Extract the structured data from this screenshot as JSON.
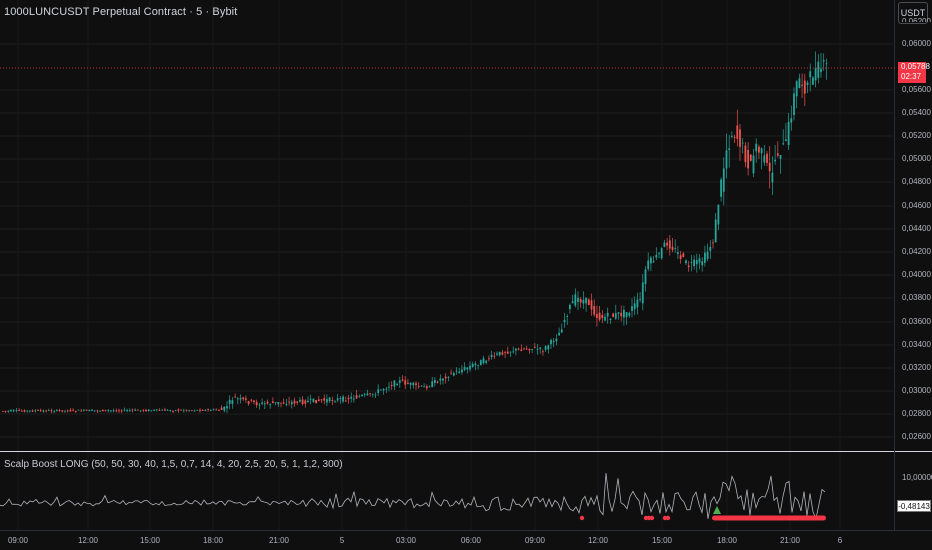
{
  "header": {
    "title": "1000LUNCUSDT Perpetual Contract · 5 · Bybit",
    "currency_button": "USDT"
  },
  "price_axis": {
    "labels": [
      "0,06000",
      "0,05600",
      "0,05400",
      "0,05200",
      "0,05000",
      "0,04800",
      "0,04600",
      "0,04400",
      "0,04200",
      "0,04000",
      "0,03800",
      "0,03600",
      "0,03400",
      "0,03200",
      "0,03000",
      "0,02800",
      "0,02600"
    ],
    "partial_top_label": "0,06200"
  },
  "last_price": {
    "value": "0,05788",
    "countdown": "02:37",
    "color": "#f23645"
  },
  "indicator": {
    "title": "Scalp Boost LONG (50, 50, 30, 40, 1,5, 0,7, 14, 4, 20, 2,5, 20, 5, 1, 1,2, 300)",
    "axis_label": "10,00000",
    "current_value": "-0,48143"
  },
  "time_axis": {
    "labels": [
      "09:00",
      "12:00",
      "15:00",
      "18:00",
      "21:00",
      "5",
      "03:00",
      "06:00",
      "09:00",
      "12:00",
      "15:00",
      "18:00",
      "21:00",
      "6"
    ]
  },
  "colors": {
    "background": "#0f0f0f",
    "up_candle": "#26a69a",
    "down_candle": "#ef5350",
    "signal_red": "#f23645",
    "signal_green": "#4caf50"
  }
}
